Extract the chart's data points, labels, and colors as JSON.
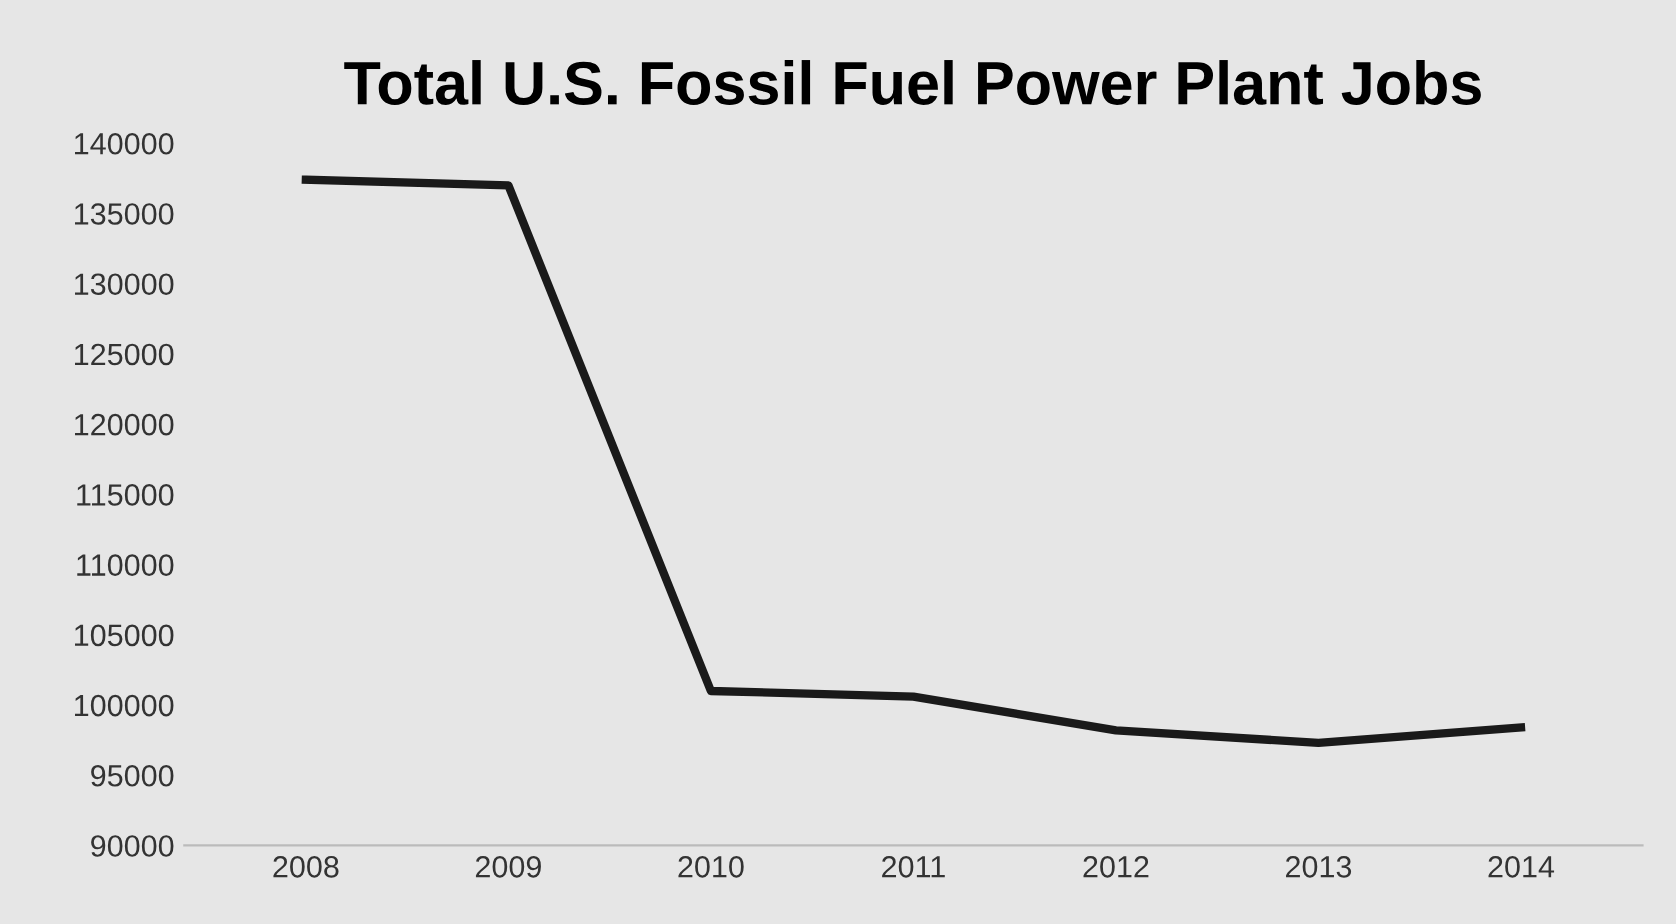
{
  "chart_data": {
    "type": "line",
    "title": "Total U.S. Fossil Fuel Power Plant Jobs",
    "categories": [
      "2008",
      "2009",
      "2010",
      "2011",
      "2012",
      "2013",
      "2014"
    ],
    "series": [
      {
        "color": "#1a1a1a",
        "values": [
          137400,
          137000,
          101000,
          100600,
          98200,
          97300,
          98400
        ]
      }
    ],
    "ylim": [
      90000,
      140000
    ],
    "yticks": [
      90000,
      95000,
      100000,
      105000,
      110000,
      115000,
      120000,
      125000,
      130000,
      135000,
      140000
    ],
    "grid": false,
    "legend": false,
    "marker": "none",
    "line_style": "solid"
  }
}
